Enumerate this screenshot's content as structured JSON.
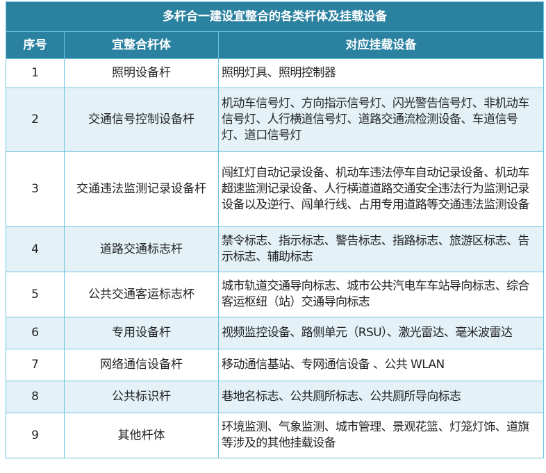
{
  "title": "多杆合一建设宜整合的各类杆体及挂载设备",
  "headers": [
    "序号",
    "宜整合杆体",
    "对应挂载设备"
  ],
  "colors": {
    "header_bg": "#2a82a0",
    "alt_row_bg": "#e4f2f8",
    "border": "#6cc3e0"
  },
  "rows": [
    {
      "no": "1",
      "pole": "照明设备杆",
      "devices": "照明灯具、照明控制器"
    },
    {
      "no": "2",
      "pole": "交通信号控制设备杆",
      "devices": "机动车信号灯、方向指示信号灯、闪光警告信号灯、非机动车信号灯、人行横道信号灯、道路交通流检测设备、车道信号灯、道口信号灯"
    },
    {
      "no": "3",
      "pole": "交通违法监测记录设备杆",
      "devices": "闯红灯自动记录设备、机动车违法停车自动记录设备、机动车超速监测记录设备、人行横道道路交通安全违法行为监测记录设备以及逆行、闯单行线、占用专用道路等交通违法监测设备"
    },
    {
      "no": "4",
      "pole": "道路交通标志杆",
      "devices": "禁令标志、指示标志、警告标志、指路标志、旅游区标志、告示标志、辅助标志"
    },
    {
      "no": "5",
      "pole": "公共交通客运标志杯",
      "devices": "城市轨道交通导向标志、城市公共汽电车车站导向标志、综合客运枢纽（站）交通导向标志"
    },
    {
      "no": "6",
      "pole": "专用设备杆",
      "devices": "视频监控设备、路侧单元（RSU）、激光雷达、毫米波雷达"
    },
    {
      "no": "7",
      "pole": "网络通信设备杆",
      "devices": "移动通信基站、专网通信设备 、公共 WLAN"
    },
    {
      "no": "8",
      "pole": "公共标识杆",
      "devices": "巷地名标志、公共厕所标志、公共厕所导向标志"
    },
    {
      "no": "9",
      "pole": "其他杆体",
      "devices": "环境监测、气象监测、城市管理、景观花篮、灯笼灯饰、道旗等涉及的其他挂载设备"
    }
  ]
}
